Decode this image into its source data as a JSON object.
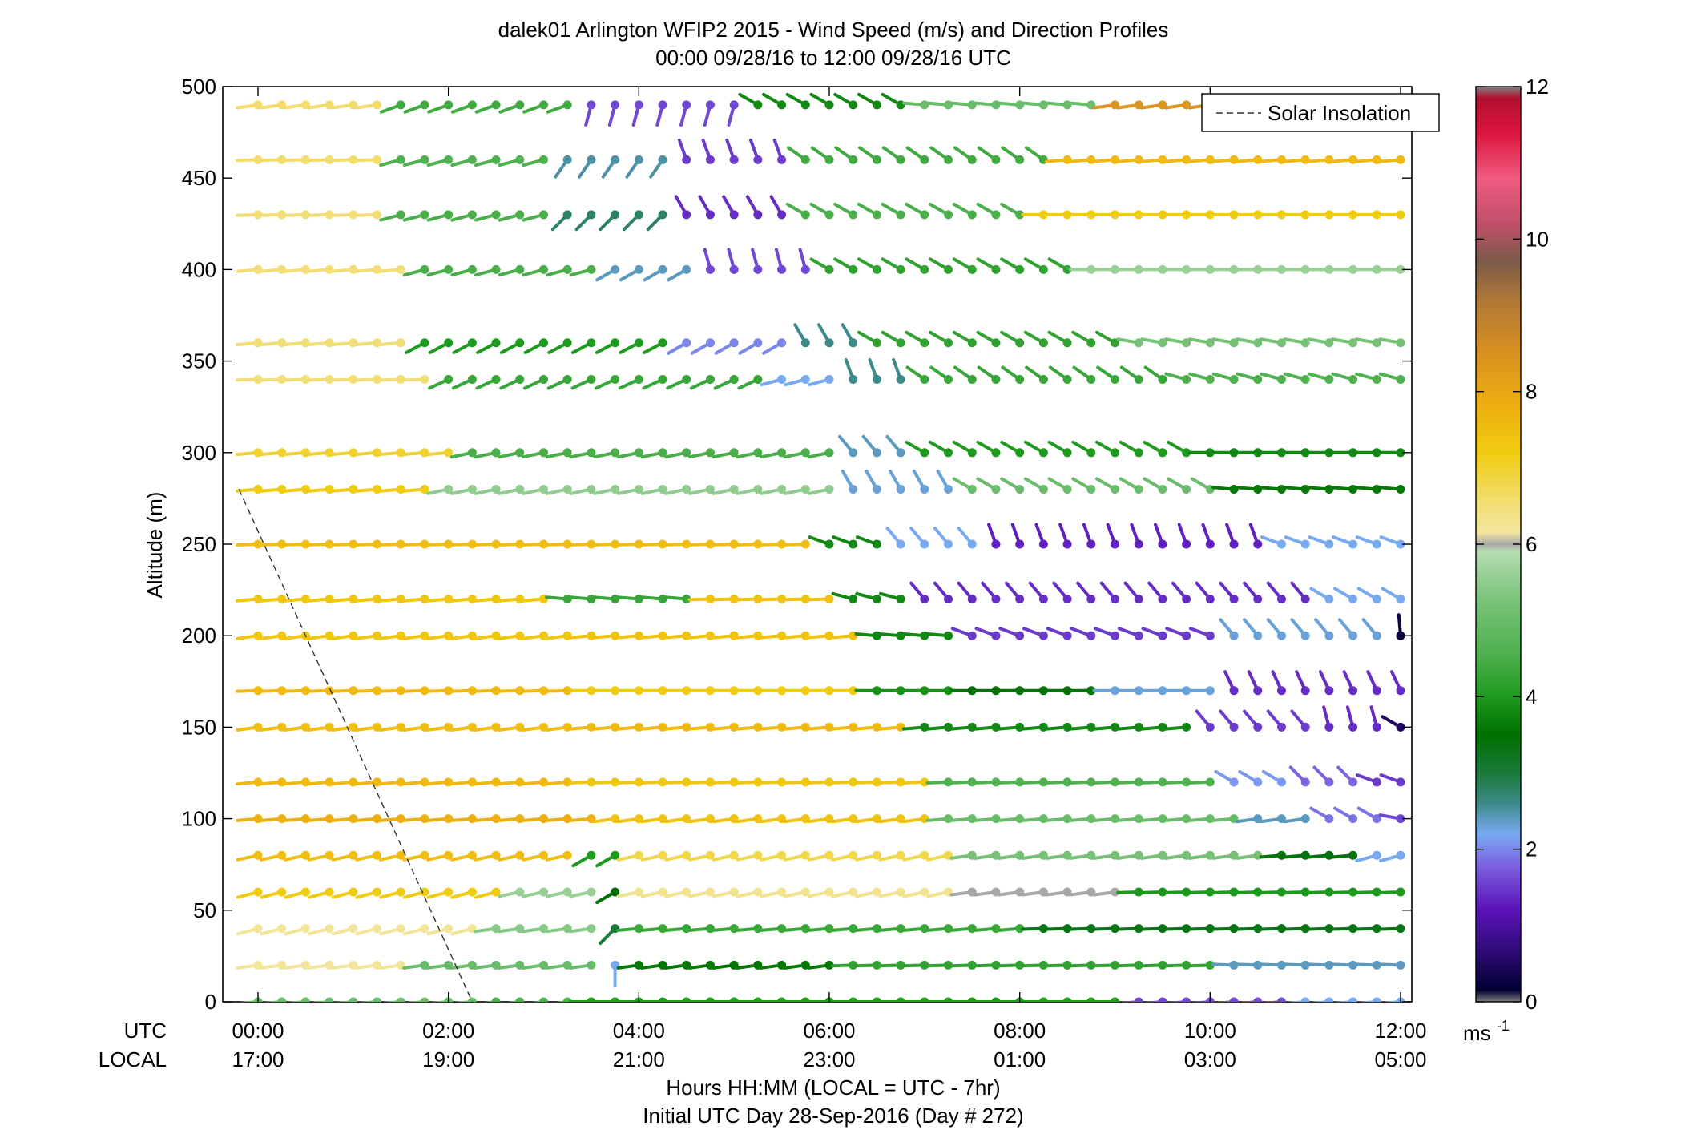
{
  "title": {
    "line1": "dalek01 Arlington WFIP2 2015 - Wind Speed (m/s) and Direction Profiles",
    "line2": "00:00 09/28/16 to 12:00 09/28/16  UTC"
  },
  "axes": {
    "ylabel": "Altitude (m)",
    "utc_label": "UTC",
    "local_label": "LOCAL",
    "xlabel_line1": "Hours HH:MM  (LOCAL = UTC - 7hr)",
    "xlabel_line2": "Initial UTC Day 28-Sep-2016 (Day # 272)",
    "utc_ticks": [
      "00:00",
      "02:00",
      "04:00",
      "06:00",
      "08:00",
      "10:00",
      "12:00"
    ],
    "local_ticks": [
      "17:00",
      "19:00",
      "21:00",
      "23:00",
      "01:00",
      "03:00",
      "05:00"
    ],
    "y_ticks": [
      "0",
      "50",
      "100",
      "150",
      "200",
      "250",
      "300",
      "350",
      "400",
      "450",
      "500"
    ]
  },
  "legend": {
    "solar_label": "Solar Insolation"
  },
  "colorbar": {
    "ticks": [
      "0",
      "2",
      "4",
      "6",
      "8",
      "10",
      "12"
    ],
    "unit": "ms",
    "unit_exp": "-1",
    "range": [
      0,
      12
    ],
    "stops": [
      {
        "v": 0.0,
        "c": "#808080"
      },
      {
        "v": 0.15,
        "c": "#000033"
      },
      {
        "v": 0.6,
        "c": "#2a0a6e"
      },
      {
        "v": 1.2,
        "c": "#5a12b8"
      },
      {
        "v": 1.8,
        "c": "#7d63e0"
      },
      {
        "v": 2.2,
        "c": "#78aaf2"
      },
      {
        "v": 2.6,
        "c": "#3d8a8a"
      },
      {
        "v": 3.0,
        "c": "#1a7a3a"
      },
      {
        "v": 3.5,
        "c": "#007000"
      },
      {
        "v": 4.0,
        "c": "#1e9a1e"
      },
      {
        "v": 4.5,
        "c": "#4aae4a"
      },
      {
        "v": 5.3,
        "c": "#7cc47c"
      },
      {
        "v": 5.9,
        "c": "#b5dcb0"
      },
      {
        "v": 6.0,
        "c": "#a8a8a8"
      },
      {
        "v": 6.15,
        "c": "#f2e6a0"
      },
      {
        "v": 6.6,
        "c": "#f2dc6a"
      },
      {
        "v": 7.2,
        "c": "#f0cc10"
      },
      {
        "v": 7.8,
        "c": "#eeb010"
      },
      {
        "v": 8.5,
        "c": "#d99020"
      },
      {
        "v": 9.2,
        "c": "#b07838"
      },
      {
        "v": 9.7,
        "c": "#7a5a48"
      },
      {
        "v": 10.2,
        "c": "#c0506a"
      },
      {
        "v": 10.8,
        "c": "#f05a80"
      },
      {
        "v": 11.4,
        "c": "#dc143c"
      },
      {
        "v": 11.85,
        "c": "#b01030"
      },
      {
        "v": 12.0,
        "c": "#808080"
      }
    ]
  },
  "chart_data": {
    "type": "wind-barb-profile",
    "x_range_hours": [
      0,
      12
    ],
    "y_range_m": [
      0,
      500
    ],
    "time_step_hours": 0.25,
    "altitudes_m": [
      0,
      20,
      40,
      60,
      80,
      100,
      120,
      150,
      170,
      200,
      220,
      250,
      280,
      300,
      340,
      360,
      400,
      430,
      460,
      490
    ],
    "solar_insolation": [
      {
        "hour": -0.2,
        "alt": 280
      },
      {
        "hour": 2.25,
        "alt": 0
      }
    ],
    "rows": [
      {
        "alt": 0,
        "segments": [
          {
            "from": 0,
            "to": 2.25,
            "speed": 5.0,
            "dir": 265
          },
          {
            "from": 2.5,
            "to": 3.25,
            "speed": 4.5,
            "dir": 262
          },
          {
            "from": 3.5,
            "to": 9.0,
            "speed": 4.0,
            "dir": 270
          },
          {
            "from": 9.25,
            "to": 10.75,
            "speed": 1.6,
            "dir": 265
          },
          {
            "from": 11.0,
            "to": 12.0,
            "speed": 2.2,
            "dir": 265
          }
        ]
      },
      {
        "alt": 20,
        "segments": [
          {
            "from": 0,
            "to": 1.5,
            "speed": 6.2,
            "dir": 262
          },
          {
            "from": 1.75,
            "to": 3.5,
            "speed": 5.0,
            "dir": 262
          },
          {
            "from": 3.75,
            "to": 3.75,
            "speed": 2.2,
            "dir": 180
          },
          {
            "from": 4.0,
            "to": 6.0,
            "speed": 3.6,
            "dir": 262
          },
          {
            "from": 6.25,
            "to": 10.0,
            "speed": 4.2,
            "dir": 268
          },
          {
            "from": 10.25,
            "to": 12.0,
            "speed": 2.4,
            "dir": 272
          }
        ]
      },
      {
        "alt": 40,
        "segments": [
          {
            "from": 0,
            "to": 2.25,
            "speed": 6.2,
            "dir": 255
          },
          {
            "from": 2.5,
            "to": 3.5,
            "speed": 5.4,
            "dir": 262
          },
          {
            "from": 3.75,
            "to": 3.75,
            "speed": 3.0,
            "dir": 225
          },
          {
            "from": 4.0,
            "to": 8.0,
            "speed": 4.3,
            "dir": 265
          },
          {
            "from": 8.25,
            "to": 12.0,
            "speed": 3.3,
            "dir": 268
          }
        ]
      },
      {
        "alt": 60,
        "segments": [
          {
            "from": 0,
            "to": 2.5,
            "speed": 7.2,
            "dir": 255
          },
          {
            "from": 2.75,
            "to": 3.5,
            "speed": 5.6,
            "dir": 258
          },
          {
            "from": 3.75,
            "to": 3.75,
            "speed": 3.5,
            "dir": 240
          },
          {
            "from": 4.0,
            "to": 7.25,
            "speed": 6.3,
            "dir": 258
          },
          {
            "from": 7.5,
            "to": 9.0,
            "speed": 6.0,
            "dir": 262
          },
          {
            "from": 9.25,
            "to": 12.0,
            "speed": 4.0,
            "dir": 268
          }
        ]
      },
      {
        "alt": 80,
        "segments": [
          {
            "from": 0,
            "to": 3.25,
            "speed": 7.5,
            "dir": 258
          },
          {
            "from": 3.5,
            "to": 3.75,
            "speed": 4.0,
            "dir": 240
          },
          {
            "from": 4.0,
            "to": 7.25,
            "speed": 6.8,
            "dir": 258
          },
          {
            "from": 7.5,
            "to": 10.5,
            "speed": 5.2,
            "dir": 262
          },
          {
            "from": 10.75,
            "to": 11.5,
            "speed": 3.4,
            "dir": 265
          },
          {
            "from": 11.75,
            "to": 12.0,
            "speed": 2.2,
            "dir": 255
          }
        ]
      },
      {
        "alt": 100,
        "segments": [
          {
            "from": 0,
            "to": 3.5,
            "speed": 7.8,
            "dir": 265
          },
          {
            "from": 3.75,
            "to": 7.0,
            "speed": 7.4,
            "dir": 262
          },
          {
            "from": 7.25,
            "to": 10.25,
            "speed": 5.0,
            "dir": 265
          },
          {
            "from": 10.5,
            "to": 11.0,
            "speed": 2.4,
            "dir": 262
          },
          {
            "from": 11.25,
            "to": 11.75,
            "speed": 1.9,
            "dir": 300
          },
          {
            "from": 12.0,
            "to": 12.0,
            "speed": 1.6,
            "dir": 280
          }
        ]
      },
      {
        "alt": 120,
        "segments": [
          {
            "from": 0,
            "to": 3.25,
            "speed": 7.6,
            "dir": 265
          },
          {
            "from": 3.5,
            "to": 7.0,
            "speed": 7.3,
            "dir": 268
          },
          {
            "from": 7.25,
            "to": 10.0,
            "speed": 4.6,
            "dir": 268
          },
          {
            "from": 10.25,
            "to": 10.75,
            "speed": 2.1,
            "dir": 300
          },
          {
            "from": 11.0,
            "to": 11.5,
            "speed": 1.8,
            "dir": 315
          },
          {
            "from": 11.75,
            "to": 12.0,
            "speed": 1.5,
            "dir": 290
          }
        ]
      },
      {
        "alt": 150,
        "segments": [
          {
            "from": 0,
            "to": 3.25,
            "speed": 7.5,
            "dir": 262
          },
          {
            "from": 3.5,
            "to": 6.75,
            "speed": 7.6,
            "dir": 265
          },
          {
            "from": 7.0,
            "to": 9.75,
            "speed": 3.8,
            "dir": 265
          },
          {
            "from": 10.0,
            "to": 11.0,
            "speed": 1.5,
            "dir": 320
          },
          {
            "from": 11.25,
            "to": 11.75,
            "speed": 1.4,
            "dir": 345
          },
          {
            "from": 12.0,
            "to": 12.0,
            "speed": 0.5,
            "dir": 300
          }
        ]
      },
      {
        "alt": 170,
        "segments": [
          {
            "from": 0,
            "to": 3.25,
            "speed": 7.6,
            "dir": 268
          },
          {
            "from": 3.5,
            "to": 6.25,
            "speed": 7.2,
            "dir": 270
          },
          {
            "from": 6.5,
            "to": 7.25,
            "speed": 3.9,
            "dir": 270
          },
          {
            "from": 7.5,
            "to": 8.75,
            "speed": 3.4,
            "dir": 270
          },
          {
            "from": 9.0,
            "to": 10.0,
            "speed": 2.3,
            "dir": 270
          },
          {
            "from": 10.25,
            "to": 12.0,
            "speed": 1.4,
            "dir": 335
          }
        ]
      },
      {
        "alt": 200,
        "segments": [
          {
            "from": 0,
            "to": 3.25,
            "speed": 7.3,
            "dir": 262
          },
          {
            "from": 3.5,
            "to": 6.25,
            "speed": 7.4,
            "dir": 265
          },
          {
            "from": 6.5,
            "to": 7.25,
            "speed": 3.8,
            "dir": 275
          },
          {
            "from": 7.5,
            "to": 10.0,
            "speed": 1.5,
            "dir": 290
          },
          {
            "from": 10.25,
            "to": 11.75,
            "speed": 2.3,
            "dir": 320
          },
          {
            "from": 12.0,
            "to": 12.0,
            "speed": 0.3,
            "dir": 355
          }
        ]
      },
      {
        "alt": 220,
        "segments": [
          {
            "from": 0,
            "to": 3.0,
            "speed": 7.3,
            "dir": 265
          },
          {
            "from": 3.25,
            "to": 4.5,
            "speed": 4.3,
            "dir": 275
          },
          {
            "from": 4.75,
            "to": 6.0,
            "speed": 7.4,
            "dir": 268
          },
          {
            "from": 6.25,
            "to": 6.75,
            "speed": 3.8,
            "dir": 285
          },
          {
            "from": 7.0,
            "to": 11.0,
            "speed": 1.4,
            "dir": 320
          },
          {
            "from": 11.25,
            "to": 12.0,
            "speed": 2.2,
            "dir": 300
          }
        ]
      },
      {
        "alt": 250,
        "segments": [
          {
            "from": 0,
            "to": 5.75,
            "speed": 7.5,
            "dir": 268
          },
          {
            "from": 6.0,
            "to": 6.5,
            "speed": 3.8,
            "dir": 290
          },
          {
            "from": 6.75,
            "to": 7.5,
            "speed": 2.2,
            "dir": 320
          },
          {
            "from": 7.75,
            "to": 10.5,
            "speed": 1.3,
            "dir": 340
          },
          {
            "from": 10.75,
            "to": 12.0,
            "speed": 2.2,
            "dir": 290
          }
        ]
      },
      {
        "alt": 280,
        "segments": [
          {
            "from": 0,
            "to": 1.75,
            "speed": 7.2,
            "dir": 265
          },
          {
            "from": 2.0,
            "to": 6.0,
            "speed": 5.5,
            "dir": 258
          },
          {
            "from": 6.25,
            "to": 7.25,
            "speed": 2.3,
            "dir": 330
          },
          {
            "from": 7.5,
            "to": 10.0,
            "speed": 5.0,
            "dir": 300
          },
          {
            "from": 10.25,
            "to": 12.0,
            "speed": 3.6,
            "dir": 275
          }
        ]
      },
      {
        "alt": 300,
        "segments": [
          {
            "from": 0,
            "to": 2.0,
            "speed": 7.0,
            "dir": 265
          },
          {
            "from": 2.25,
            "to": 6.0,
            "speed": 4.5,
            "dir": 258
          },
          {
            "from": 6.25,
            "to": 6.75,
            "speed": 2.4,
            "dir": 320
          },
          {
            "from": 7.0,
            "to": 9.75,
            "speed": 4.0,
            "dir": 300
          },
          {
            "from": 10.0,
            "to": 12.0,
            "speed": 3.8,
            "dir": 270
          }
        ]
      },
      {
        "alt": 340,
        "segments": [
          {
            "from": 0,
            "to": 1.75,
            "speed": 6.5,
            "dir": 268
          },
          {
            "from": 2.0,
            "to": 5.25,
            "speed": 4.3,
            "dir": 245
          },
          {
            "from": 5.5,
            "to": 6.0,
            "speed": 2.2,
            "dir": 255
          },
          {
            "from": 6.25,
            "to": 6.75,
            "speed": 2.6,
            "dir": 340
          },
          {
            "from": 7.0,
            "to": 9.5,
            "speed": 4.3,
            "dir": 305
          },
          {
            "from": 9.75,
            "to": 12.0,
            "speed": 4.6,
            "dir": 285
          }
        ]
      },
      {
        "alt": 360,
        "segments": [
          {
            "from": 0,
            "to": 1.5,
            "speed": 6.5,
            "dir": 265
          },
          {
            "from": 1.75,
            "to": 4.25,
            "speed": 4.0,
            "dir": 242
          },
          {
            "from": 4.5,
            "to": 5.5,
            "speed": 2.0,
            "dir": 240
          },
          {
            "from": 5.75,
            "to": 6.25,
            "speed": 2.6,
            "dir": 330
          },
          {
            "from": 6.5,
            "to": 9.0,
            "speed": 4.2,
            "dir": 300
          },
          {
            "from": 9.25,
            "to": 12.0,
            "speed": 5.2,
            "dir": 280
          }
        ]
      },
      {
        "alt": 400,
        "segments": [
          {
            "from": 0,
            "to": 1.5,
            "speed": 6.5,
            "dir": 265
          },
          {
            "from": 1.75,
            "to": 3.5,
            "speed": 4.5,
            "dir": 255
          },
          {
            "from": 3.75,
            "to": 4.5,
            "speed": 2.4,
            "dir": 240
          },
          {
            "from": 4.75,
            "to": 5.75,
            "speed": 1.6,
            "dir": 345
          },
          {
            "from": 6.0,
            "to": 8.5,
            "speed": 4.2,
            "dir": 300
          },
          {
            "from": 8.75,
            "to": 12.0,
            "speed": 5.6,
            "dir": 270
          }
        ]
      },
      {
        "alt": 430,
        "segments": [
          {
            "from": 0,
            "to": 1.25,
            "speed": 6.5,
            "dir": 268
          },
          {
            "from": 1.5,
            "to": 3.0,
            "speed": 4.5,
            "dir": 255
          },
          {
            "from": 3.25,
            "to": 4.25,
            "speed": 2.8,
            "dir": 225
          },
          {
            "from": 4.5,
            "to": 5.5,
            "speed": 1.4,
            "dir": 330
          },
          {
            "from": 5.75,
            "to": 8.0,
            "speed": 4.5,
            "dir": 300
          },
          {
            "from": 8.25,
            "to": 12.0,
            "speed": 7.2,
            "dir": 270
          }
        ]
      },
      {
        "alt": 460,
        "segments": [
          {
            "from": 0,
            "to": 1.25,
            "speed": 6.6,
            "dir": 268
          },
          {
            "from": 1.5,
            "to": 3.0,
            "speed": 4.6,
            "dir": 255
          },
          {
            "from": 3.25,
            "to": 4.25,
            "speed": 2.5,
            "dir": 215
          },
          {
            "from": 4.5,
            "to": 5.5,
            "speed": 1.5,
            "dir": 340
          },
          {
            "from": 5.75,
            "to": 8.25,
            "speed": 4.4,
            "dir": 305
          },
          {
            "from": 8.5,
            "to": 12.0,
            "speed": 7.6,
            "dir": 265
          }
        ]
      },
      {
        "alt": 490,
        "segments": [
          {
            "from": 0,
            "to": 1.25,
            "speed": 6.6,
            "dir": 262
          },
          {
            "from": 1.5,
            "to": 3.25,
            "speed": 4.4,
            "dir": 250
          },
          {
            "from": 3.5,
            "to": 5.0,
            "speed": 1.6,
            "dir": 195
          },
          {
            "from": 5.25,
            "to": 6.75,
            "speed": 3.8,
            "dir": 300
          },
          {
            "from": 7.0,
            "to": 8.75,
            "speed": 5.0,
            "dir": 275
          },
          {
            "from": 9.0,
            "to": 12.0,
            "speed": 8.4,
            "dir": 262
          }
        ]
      }
    ]
  }
}
